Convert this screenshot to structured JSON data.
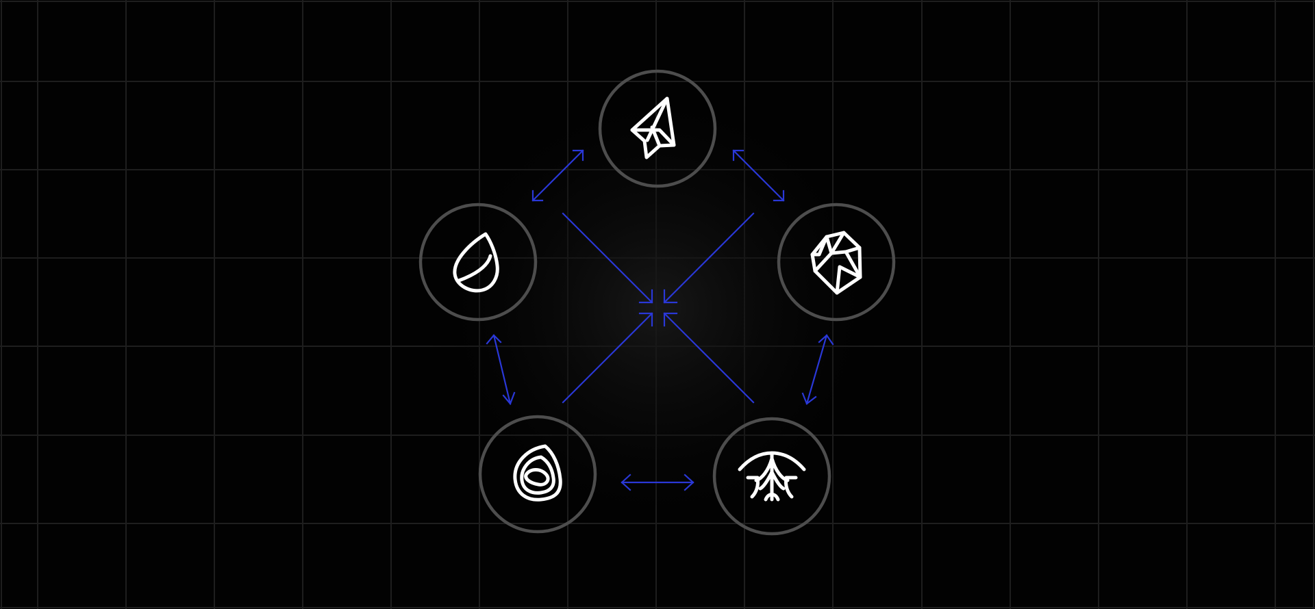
{
  "colors": {
    "background": "#020202",
    "grid_line": "#1e1e1e",
    "center_glow": "#1a1a1a",
    "node_ring": "#4d4d4d",
    "icon_stroke": "#ffffff",
    "arrow": "#2a38d8"
  },
  "nodes": [
    {
      "id": "top",
      "icon": "paper-plane-icon"
    },
    {
      "id": "left",
      "icon": "leaf-drop-icon"
    },
    {
      "id": "right",
      "icon": "crystal-gem-icon"
    },
    {
      "id": "bottom-left",
      "icon": "swirl-stone-icon"
    },
    {
      "id": "bottom-right",
      "icon": "root-sprout-icon"
    }
  ],
  "arrows": {
    "perimeter": "bidirectional",
    "spokes": "converging-to-center"
  }
}
